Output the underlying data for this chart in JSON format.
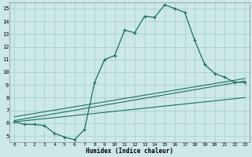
{
  "xlabel": "Humidex (Indice chaleur)",
  "bg_color": "#cce8e8",
  "grid_color": "#aad0d0",
  "line_color": "#1a7060",
  "xlim": [
    -0.5,
    23.5
  ],
  "ylim": [
    4.5,
    15.5
  ],
  "yticks": [
    5,
    6,
    7,
    8,
    9,
    10,
    11,
    12,
    13,
    14,
    15
  ],
  "xticks": [
    0,
    1,
    2,
    3,
    4,
    5,
    6,
    7,
    8,
    9,
    10,
    11,
    12,
    13,
    14,
    15,
    16,
    17,
    18,
    19,
    20,
    21,
    22,
    23
  ],
  "line1_x": [
    0,
    1,
    2,
    3,
    4,
    5,
    6,
    7,
    8,
    9,
    10,
    11,
    12,
    13,
    14,
    15,
    16,
    17,
    18,
    19,
    20,
    21,
    22,
    23
  ],
  "line1_y": [
    6.1,
    5.9,
    5.9,
    5.8,
    5.2,
    4.9,
    4.7,
    5.5,
    9.2,
    11.0,
    11.3,
    13.3,
    13.1,
    14.4,
    14.3,
    15.3,
    15.0,
    14.7,
    12.5,
    10.6,
    9.9,
    9.6,
    9.2,
    9.2
  ],
  "line2_x": [
    0,
    23
  ],
  "line2_y": [
    6.2,
    9.3
  ],
  "line3_x": [
    0,
    23
  ],
  "line3_y": [
    6.5,
    9.5
  ],
  "line4_x": [
    0,
    23
  ],
  "line4_y": [
    6.1,
    8.0
  ]
}
